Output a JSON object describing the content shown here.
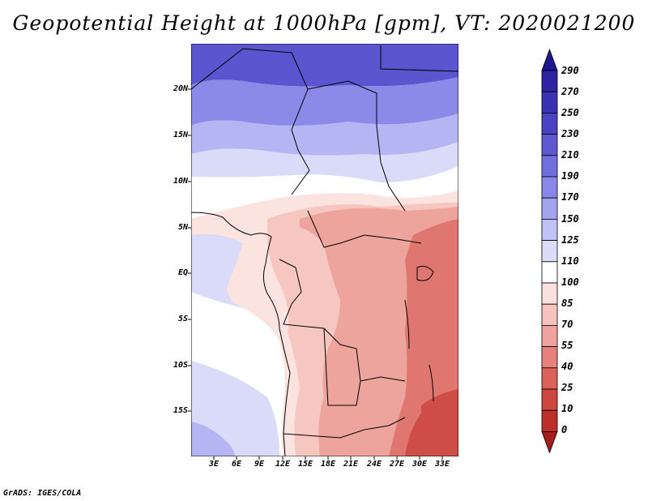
{
  "title": "Geopotential Height at 1000hPa [gpm], VT: 2020021200",
  "credit": "GrADS: IGES/COLA",
  "axes": {
    "lat_labels": [
      "20N",
      "15N",
      "10N",
      "5N",
      "EQ",
      "5S",
      "10S",
      "15S"
    ],
    "lon_labels": [
      "3E",
      "6E",
      "9E",
      "12E",
      "15E",
      "18E",
      "21E",
      "24E",
      "27E",
      "30E",
      "33E"
    ]
  },
  "colorbar": {
    "levels": [
      "290",
      "270",
      "250",
      "230",
      "210",
      "190",
      "170",
      "150",
      "125",
      "110",
      "100",
      "85",
      "70",
      "55",
      "40",
      "25",
      "10",
      "0"
    ],
    "colors": {
      "top_triangle": "#1f168f",
      "bands": [
        "#2d23a3",
        "#3a32b5",
        "#4a44c3",
        "#5c59d1",
        "#706fde",
        "#8888e8",
        "#a3a4ef",
        "#c0c1f4",
        "#dcdcf9",
        "#ffffff",
        "#fbe1de",
        "#f6c4bf",
        "#efa39c",
        "#e6827b",
        "#da625b",
        "#cd4640",
        "#bd2f2b"
      ],
      "bottom_triangle": "#a51d1f"
    }
  },
  "map": {
    "colors": {
      "far_north": "#5b56cf",
      "north": "#8b8ae9",
      "mid_north": "#b4b5f2",
      "light_blue": "#dadbf8",
      "white": "#ffffff",
      "pale_pink": "#fbe3e0",
      "pink": "#f6c6c0",
      "salmon": "#eda49d",
      "red": "#df7770",
      "deep_red": "#cf4d47",
      "borders": "#000000"
    }
  }
}
